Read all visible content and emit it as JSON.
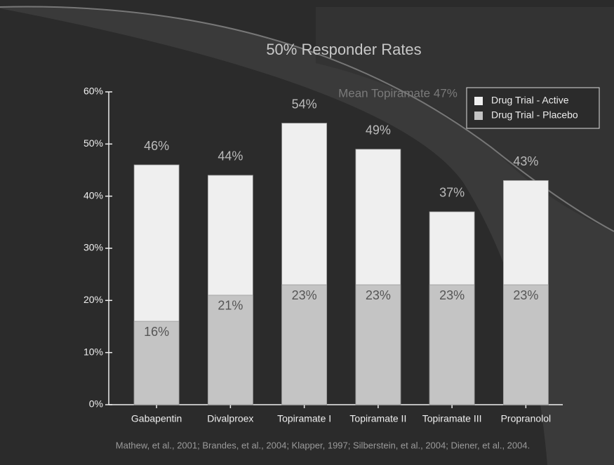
{
  "chart_data": {
    "type": "bar",
    "title": "50% Responder Rates",
    "annotation": "Mean Topiramate 47%",
    "footnote": "Mathew, et al., 2001; Brandes, et al., 2004; Klapper, 1997; Silberstein, et al., 2004; Diener, et al., 2004.",
    "categories": [
      "Gabapentin",
      "Divalproex",
      "Topiramate I",
      "Topiramate II",
      "Topiramate III",
      "Propranolol"
    ],
    "series": [
      {
        "name": "Drug Trial - Active",
        "color": "#efefef",
        "values": [
          46,
          44,
          54,
          49,
          37,
          43
        ],
        "value_labels": [
          "46%",
          "44%",
          "54%",
          "49%",
          "37%",
          "43%"
        ]
      },
      {
        "name": "Drug Trial - Placebo",
        "color": "#c4c4c4",
        "values": [
          16,
          21,
          23,
          23,
          23,
          23
        ],
        "value_labels": [
          "16%",
          "21%",
          "23%",
          "23%",
          "23%",
          "23%"
        ]
      }
    ],
    "ylim": [
      0,
      60
    ],
    "yticks": [
      {
        "value": 0,
        "label": "0%"
      },
      {
        "value": 10,
        "label": "10%"
      },
      {
        "value": 20,
        "label": "20%"
      },
      {
        "value": 30,
        "label": "30%"
      },
      {
        "value": 40,
        "label": "40%"
      },
      {
        "value": 50,
        "label": "50%"
      },
      {
        "value": 60,
        "label": "60%"
      }
    ],
    "overlap": true,
    "legend": "upper right"
  }
}
